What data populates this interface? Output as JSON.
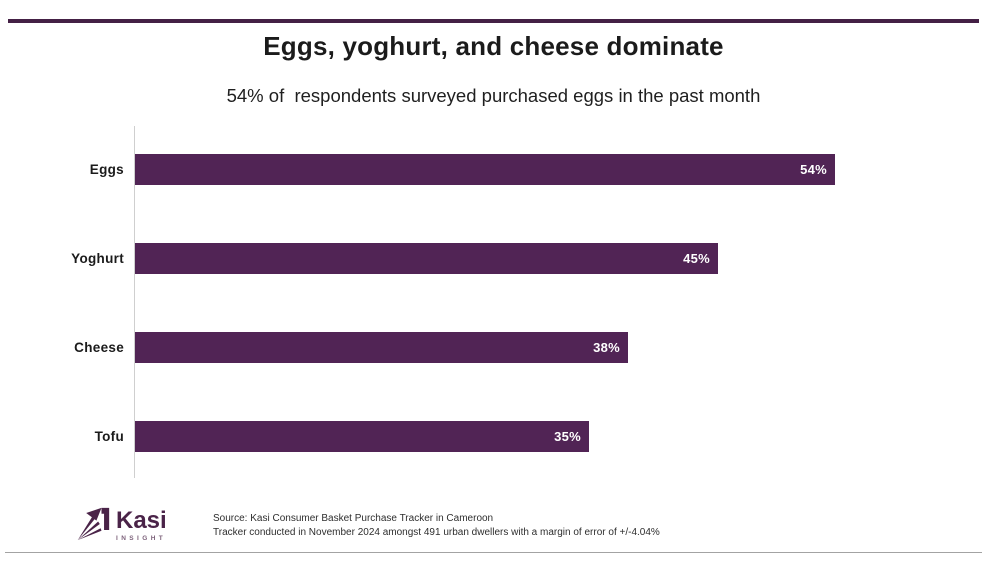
{
  "header": {
    "title": "Eggs, yoghurt, and cheese dominate",
    "subtitle": "54% of  respondents surveyed purchased eggs in the past month"
  },
  "chart_data": {
    "type": "bar",
    "orientation": "horizontal",
    "title": "Eggs, yoghurt, and cheese dominate",
    "subtitle": "54% of  respondents surveyed purchased eggs in the past month",
    "categories": [
      "Eggs",
      "Yoghurt",
      "Cheese",
      "Tofu"
    ],
    "values": [
      54,
      45,
      38,
      35
    ],
    "value_labels": [
      "54%",
      "45%",
      "38%",
      "35%"
    ],
    "unit": "%",
    "xlim": [
      0,
      54
    ],
    "grid": false,
    "legend": false,
    "value_label_position": "inside-end",
    "bar_color": "#512455"
  },
  "footer": {
    "logo_name": "Kasi",
    "logo_tagline": "INSIGHT",
    "source_line1": "Source: Kasi Consumer Basket Purchase Tracker in Cameroon",
    "source_line2": "Tracker conducted in November 2024 amongst 491 urban dwellers with a margin of error of +/-4.04%"
  },
  "colors": {
    "bar": "#512455",
    "accent_line": "#442045",
    "logo": "#4a2348",
    "logo_tagline": "#7d627b",
    "axis": "#cfcfcf",
    "bottom_line": "#a3a3a3",
    "title_text": "#1b1b1b",
    "value_text": "#ffffff"
  }
}
